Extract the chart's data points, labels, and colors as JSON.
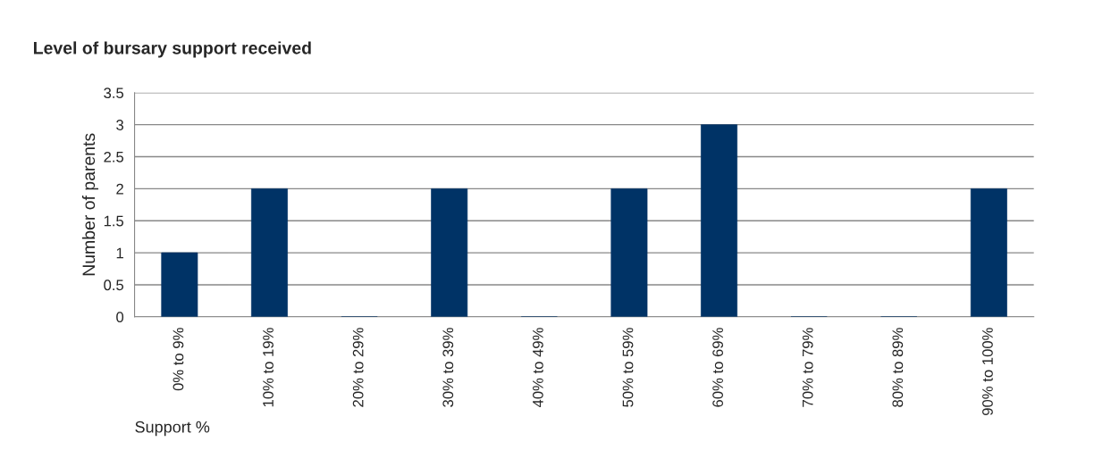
{
  "chart_data": {
    "type": "bar",
    "title": "Level of bursary support received",
    "xlabel": "Support %",
    "ylabel": "Number of parents",
    "categories": [
      "0% to 9%",
      "10% to 19%",
      "20% to 29%",
      "30% to 39%",
      "40% to 49%",
      "50% to 59%",
      "60% to 69%",
      "70% to 79%",
      "80% to 89%",
      "90% to 100%"
    ],
    "values": [
      1,
      2,
      0,
      2,
      0,
      2,
      3,
      0,
      0,
      2
    ],
    "color": "#003366",
    "ylim": [
      0,
      3.5
    ],
    "yticks": [
      0,
      0.5,
      1,
      1.5,
      2,
      2.5,
      3,
      3.5
    ],
    "grid": "y",
    "legend": false
  }
}
